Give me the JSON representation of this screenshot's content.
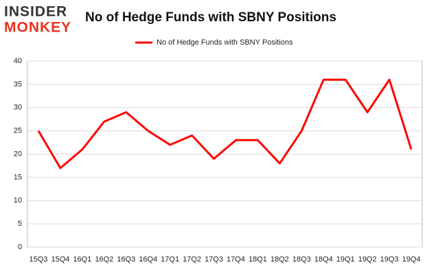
{
  "logo": {
    "line1": "INSIDER",
    "line2": "MONKEY"
  },
  "chart_data": {
    "type": "line",
    "title": "No of Hedge Funds with SBNY Positions",
    "categories": [
      "15Q3",
      "15Q4",
      "16Q1",
      "16Q2",
      "16Q3",
      "16Q4",
      "17Q1",
      "17Q2",
      "17Q3",
      "17Q4",
      "18Q1",
      "18Q2",
      "18Q3",
      "18Q4",
      "19Q1",
      "19Q2",
      "19Q3",
      "19Q4"
    ],
    "series": [
      {
        "name": "No of Hedge Funds with SBNY Positions",
        "color": "#ff0000",
        "values": [
          25,
          17,
          21,
          27,
          29,
          25,
          22,
          24,
          19,
          23,
          23,
          18,
          25,
          36,
          36,
          29,
          36,
          21
        ]
      }
    ],
    "ylim": [
      0,
      40
    ],
    "yticks": [
      0,
      5,
      10,
      15,
      20,
      25,
      30,
      35,
      40
    ],
    "grid": true,
    "legend": "top"
  }
}
